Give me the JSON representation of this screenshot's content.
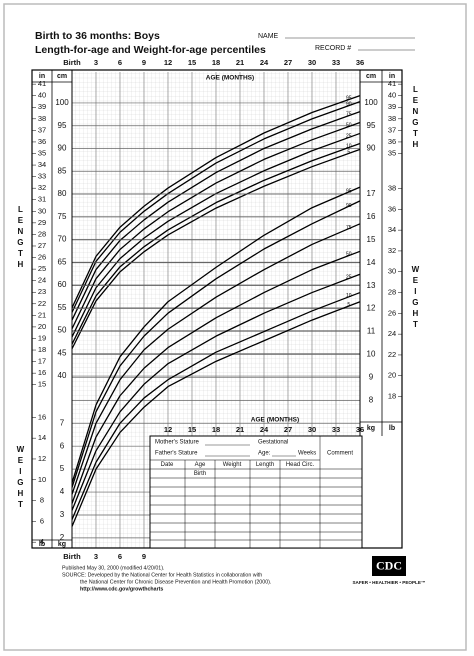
{
  "header": {
    "title": "Birth to 36 months: Boys",
    "subtitle": "Length-for-age and Weight-for-age percentiles",
    "name_label": "NAME",
    "record_label": "RECORD #"
  },
  "chart_data": [
    {
      "type": "line",
      "title": "LENGTH",
      "xlabel": "AGE (MONTHS)",
      "ylabel": "cm",
      "y2label": "in",
      "x": [
        0,
        3,
        6,
        9,
        12,
        18,
        24,
        30,
        36
      ],
      "xlim": [
        0,
        36
      ],
      "xticks": [
        {
          "value": 0,
          "label": "Birth"
        },
        3,
        6,
        9,
        12,
        15,
        18,
        21,
        24,
        27,
        30,
        33,
        36
      ],
      "ylim": [
        36.5,
        106.8
      ],
      "yticks": [
        40,
        45,
        50,
        55,
        60,
        65,
        70,
        75,
        80,
        85,
        90,
        95,
        100
      ],
      "y2lim": [
        14.37,
        42.05
      ],
      "y2ticks": [
        15,
        16,
        17,
        18,
        19,
        20,
        21,
        22,
        23,
        24,
        25,
        26,
        27,
        28,
        29,
        30,
        31,
        32,
        33,
        34,
        35,
        36,
        37,
        38,
        39,
        40,
        41
      ],
      "grid": true,
      "series": [
        {
          "name": "95",
          "color": "#000000",
          "values": [
            55.0,
            66.3,
            72.7,
            77.3,
            81.3,
            88.0,
            93.4,
            97.9,
            101.6
          ]
        },
        {
          "name": "90",
          "color": "#000000",
          "values": [
            54.0,
            65.2,
            71.6,
            76.2,
            80.1,
            86.8,
            92.1,
            96.5,
            100.3
          ]
        },
        {
          "name": "75",
          "color": "#000000",
          "values": [
            52.3,
            63.4,
            69.8,
            74.3,
            78.2,
            84.7,
            90.0,
            94.3,
            98.1
          ]
        },
        {
          "name": "50",
          "color": "#000000",
          "values": [
            50.4,
            61.4,
            67.8,
            72.3,
            76.1,
            82.4,
            87.6,
            91.9,
            95.7
          ]
        },
        {
          "name": "25",
          "color": "#000000",
          "values": [
            48.6,
            59.4,
            65.8,
            70.3,
            74.0,
            80.1,
            85.1,
            89.5,
            93.3
          ]
        },
        {
          "name": "10",
          "color": "#000000",
          "values": [
            47.0,
            57.6,
            64.0,
            68.4,
            72.1,
            78.1,
            83.0,
            87.3,
            91.1
          ]
        },
        {
          "name": "5",
          "color": "#000000",
          "values": [
            46.0,
            56.5,
            62.9,
            67.3,
            71.0,
            76.9,
            81.7,
            86.0,
            89.8
          ]
        }
      ]
    },
    {
      "type": "line",
      "title": "WEIGHT",
      "xlabel": "AGE (MONTHS)",
      "ylabel": "kg",
      "y2label": "lb",
      "x": [
        0,
        3,
        6,
        9,
        12,
        18,
        24,
        30,
        36
      ],
      "xlim": [
        0,
        36
      ],
      "xticks": [
        {
          "value": 0,
          "label": "Birth"
        },
        3,
        6,
        9,
        12,
        15,
        18,
        21,
        24,
        27,
        30,
        33,
        36
      ],
      "ylim": [
        1.56,
        17.61
      ],
      "yticks": [
        2,
        3,
        4,
        5,
        6,
        7,
        8,
        9,
        10,
        11,
        12,
        13,
        14,
        15,
        16,
        17
      ],
      "y2lim": [
        3.44,
        38.82
      ],
      "y2ticks": [
        4,
        6,
        8,
        10,
        12,
        14,
        16,
        18,
        20,
        22,
        24,
        26,
        28,
        30,
        32,
        34,
        36,
        38
      ],
      "grid": true,
      "series": [
        {
          "name": "95",
          "color": "#000000",
          "values": [
            4.4,
            7.8,
            9.9,
            11.2,
            12.3,
            13.8,
            15.2,
            16.4,
            17.3
          ]
        },
        {
          "name": "90",
          "color": "#000000",
          "values": [
            4.2,
            7.5,
            9.5,
            10.8,
            11.8,
            13.3,
            14.6,
            15.7,
            16.7
          ]
        },
        {
          "name": "75",
          "color": "#000000",
          "values": [
            3.9,
            7.0,
            8.9,
            10.2,
            11.1,
            12.5,
            13.7,
            14.8,
            15.7
          ]
        },
        {
          "name": "50",
          "color": "#000000",
          "values": [
            3.5,
            6.4,
            8.2,
            9.4,
            10.3,
            11.6,
            12.7,
            13.7,
            14.5
          ]
        },
        {
          "name": "25",
          "color": "#000000",
          "values": [
            3.2,
            5.8,
            7.5,
            8.7,
            9.6,
            10.8,
            11.8,
            12.7,
            13.5
          ]
        },
        {
          "name": "10",
          "color": "#000000",
          "values": [
            2.8,
            5.3,
            7.0,
            8.1,
            8.9,
            10.1,
            11.0,
            11.9,
            12.7
          ]
        },
        {
          "name": "5",
          "color": "#000000",
          "values": [
            2.5,
            5.0,
            6.6,
            7.7,
            8.6,
            9.7,
            10.6,
            11.5,
            12.3
          ]
        }
      ]
    }
  ],
  "form": {
    "mother": "Mother's Stature",
    "gestational": "Gestational",
    "father": "Father's Stature",
    "age": "Age:",
    "weeks": "Weeks",
    "comment": "Comment",
    "columns": [
      "Date",
      "Age",
      "Weight",
      "Length",
      "Head Circ."
    ],
    "first_row_age": "Birth"
  },
  "footer": {
    "published": "Published May 30, 2000 (modified 4/20/01).",
    "source1": "SOURCE: Developed by the National Center for Health Statistics in collaboration with",
    "source2": "the National Center for Chronic Disease Prevention and Health Promotion (2000).",
    "url": "http://www.cdc.gov/growthcharts",
    "logo": "CDC",
    "slogan": "SAFER • HEALTHIER • PEOPLE™"
  }
}
